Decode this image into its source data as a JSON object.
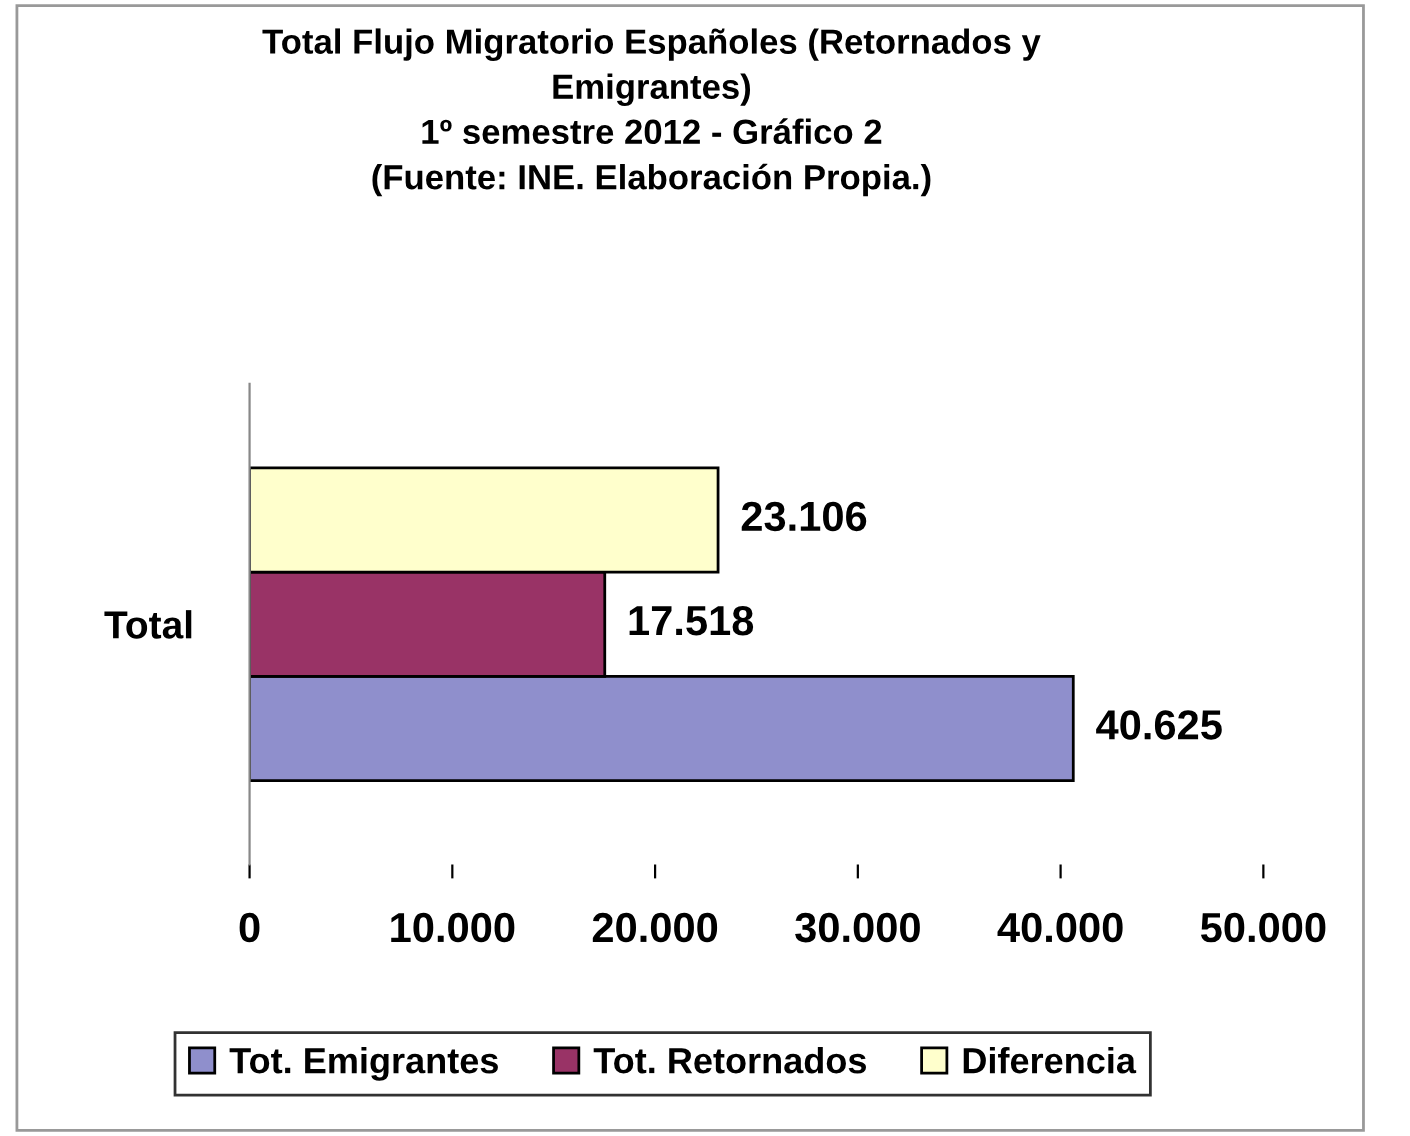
{
  "chart_data": {
    "type": "bar",
    "orientation": "horizontal",
    "title": "Total Flujo Migratorio Españoles (Retornados y\nEmigrantes)\n1º semestre 2012 - Gráfico 2\n(Fuente: INE. Elaboración Propia.)",
    "categories": [
      "Total"
    ],
    "series": [
      {
        "name": "Tot. Emigrantes",
        "color": "#8f8fcc",
        "values": [
          40625
        ],
        "value_labels": [
          "40.625"
        ]
      },
      {
        "name": "Tot. Retornados",
        "color": "#993366",
        "values": [
          17518
        ],
        "value_labels": [
          "17.518"
        ]
      },
      {
        "name": "Diferencia",
        "color": "#ffffcc",
        "values": [
          23106
        ],
        "value_labels": [
          "23.106"
        ]
      }
    ],
    "xlim": [
      0,
      50000
    ],
    "xticks": [
      0,
      {
        "value": 10000,
        "label": "10.000"
      },
      {
        "value": 20000,
        "label": "20.000"
      },
      {
        "value": 30000,
        "label": "30.000"
      },
      {
        "value": 40000,
        "label": "40.000"
      },
      {
        "value": 50000,
        "label": "50.000"
      }
    ],
    "grid": false,
    "legend": "bottom"
  }
}
